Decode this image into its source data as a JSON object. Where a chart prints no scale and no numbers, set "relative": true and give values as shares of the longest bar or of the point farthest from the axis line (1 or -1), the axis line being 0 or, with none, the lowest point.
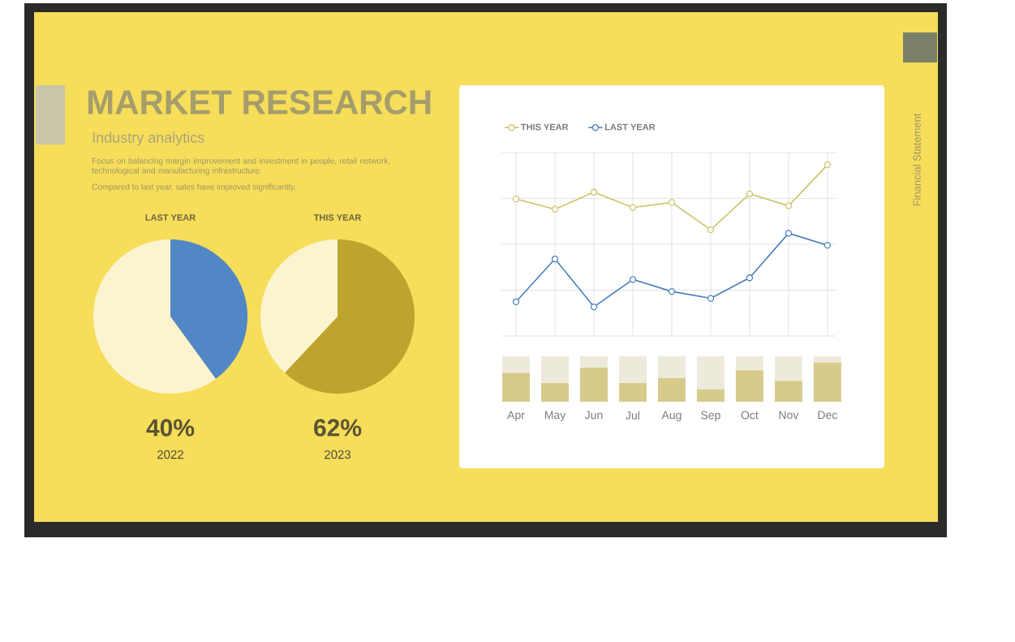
{
  "chart_data": [
    {
      "type": "other",
      "title": "MARKET RESEARCH",
      "subtitle": "Industry analytics",
      "annotations": [
        "Focus on balancing margin improvement and investment in people, retail network, technological and manufacturing infrastructure.",
        "Compared to last year, sales have improved significantly.",
        "Financial Statement"
      ]
    },
    {
      "type": "pie",
      "title": "LAST YEAR",
      "categories": [
        null,
        null
      ],
      "values": [
        40,
        60
      ],
      "colors": [
        "#5287c6",
        "#fcf4cf"
      ],
      "annotations": [
        "40%",
        "2022"
      ]
    },
    {
      "type": "pie",
      "title": "THIS YEAR",
      "categories": [
        null,
        null
      ],
      "values": [
        62,
        38
      ],
      "colors": [
        "#bca42e",
        "#fcf4cf"
      ],
      "annotations": [
        "62%",
        "2023"
      ]
    },
    {
      "type": "line",
      "relative": true,
      "grid": true,
      "legend": "top left",
      "marker": "circle",
      "tick_labels": false,
      "categories": [
        null,
        null,
        null,
        null,
        null,
        null,
        null,
        null,
        null
      ],
      "series": [
        {
          "name": "THIS YEAR",
          "color": "#cdc36a",
          "values": [
            0.8,
            0.74,
            0.84,
            0.75,
            0.78,
            0.62,
            0.83,
            0.76,
            1.0
          ]
        },
        {
          "name": "LAST YEAR",
          "color": "#4a7fba",
          "values": [
            0.2,
            0.45,
            0.17,
            0.33,
            0.26,
            0.22,
            0.34,
            0.6,
            0.53
          ]
        }
      ]
    },
    {
      "type": "bar",
      "relative": true,
      "stacked": true,
      "categories": [
        "Apr",
        "May",
        "Jun",
        "Jul",
        "Aug",
        "Sep",
        "Oct",
        "Nov",
        "Dec"
      ],
      "series": [
        {
          "color": "#d6cb8b",
          "values": [
            0.64,
            0.41,
            0.75,
            0.41,
            0.52,
            0.27,
            0.69,
            0.46,
            0.86
          ]
        },
        {
          "color": "#eeeadb",
          "values": [
            0.36,
            0.59,
            0.25,
            0.59,
            0.48,
            0.73,
            0.31,
            0.54,
            0.14
          ]
        }
      ]
    }
  ]
}
